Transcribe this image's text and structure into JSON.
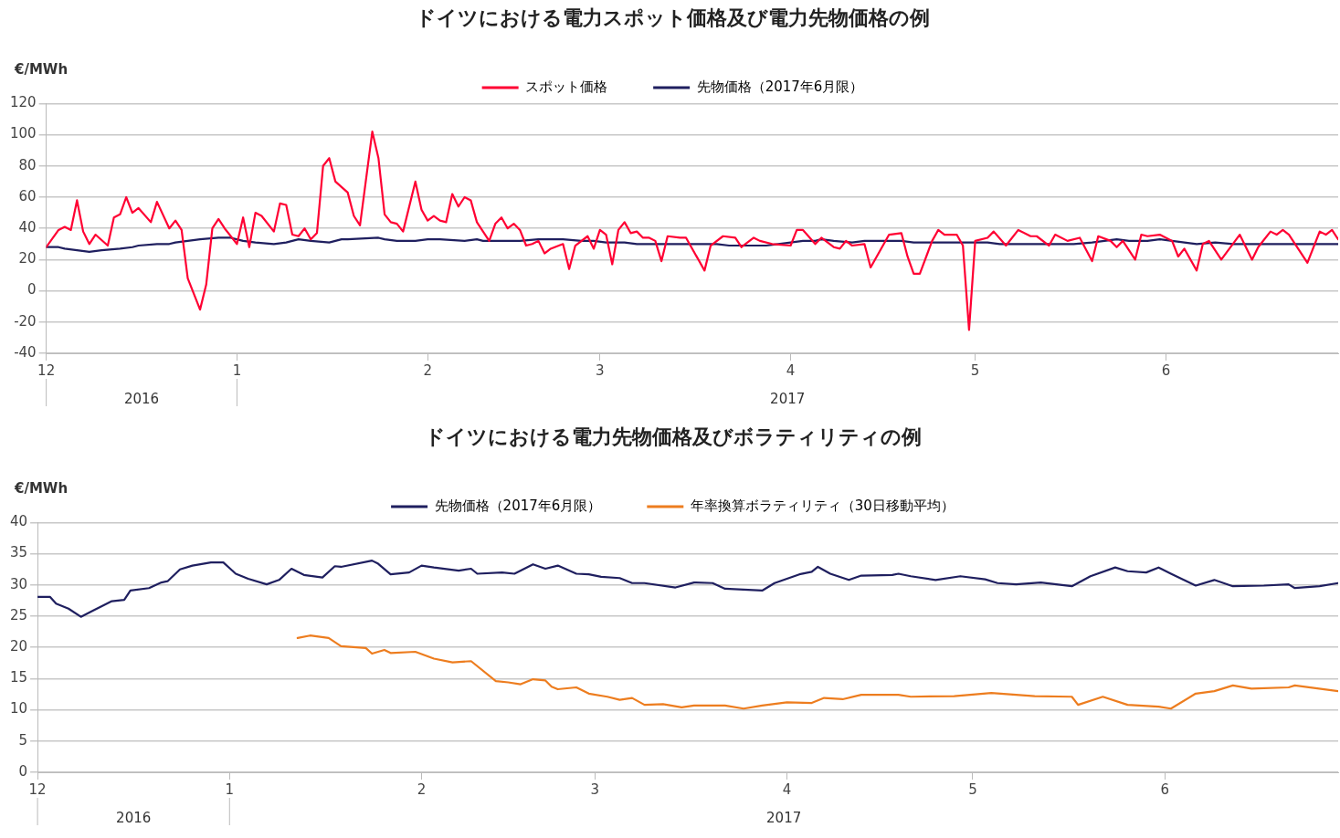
{
  "chart_data": [
    {
      "type": "line",
      "title": "ドイツにおける電力スポット価格及び電力先物価格の例",
      "ylabel": "€/MWh",
      "xlim": [
        "2016-12-01",
        "2017-06-29"
      ],
      "xticks": [
        {
          "value": "2016-12-01",
          "label": "12"
        },
        {
          "value": "2017-01-01",
          "label": "1"
        },
        {
          "value": "2017-02-01",
          "label": "2"
        },
        {
          "value": "2017-03-01",
          "label": "3"
        },
        {
          "value": "2017-04-01",
          "label": "4"
        },
        {
          "value": "2017-05-01",
          "label": "5"
        },
        {
          "value": "2017-06-01",
          "label": "6"
        }
      ],
      "ylim": [
        -40,
        120
      ],
      "yticks": [
        -40,
        -20,
        0,
        20,
        40,
        60,
        80,
        100,
        120
      ],
      "grid": "y",
      "legend": "top",
      "marker": "none",
      "line_style": "solid",
      "annotations": [
        "2016",
        "2017"
      ],
      "series": [
        {
          "name": "スポット価格",
          "color": "#ff0033",
          "x": [
            "2016-12-01",
            "2016-12-03",
            "2016-12-04",
            "2016-12-05",
            "2016-12-06",
            "2016-12-07",
            "2016-12-08",
            "2016-12-09",
            "2016-12-11",
            "2016-12-12",
            "2016-12-13",
            "2016-12-14",
            "2016-12-15",
            "2016-12-16",
            "2016-12-18",
            "2016-12-19",
            "2016-12-21",
            "2016-12-22",
            "2016-12-23",
            "2016-12-24",
            "2016-12-26",
            "2016-12-27",
            "2016-12-28",
            "2016-12-29",
            "2016-12-30",
            "2017-01-01",
            "2017-01-02",
            "2017-01-03",
            "2017-01-04",
            "2017-01-05",
            "2017-01-07",
            "2017-01-08",
            "2017-01-09",
            "2017-01-10",
            "2017-01-11",
            "2017-01-12",
            "2017-01-13",
            "2017-01-14",
            "2017-01-15",
            "2017-01-16",
            "2017-01-17",
            "2017-01-19",
            "2017-01-20",
            "2017-01-21",
            "2017-01-23",
            "2017-01-24",
            "2017-01-25",
            "2017-01-26",
            "2017-01-27",
            "2017-01-28",
            "2017-01-30",
            "2017-01-31",
            "2017-02-01",
            "2017-02-02",
            "2017-02-03",
            "2017-02-04",
            "2017-02-05",
            "2017-02-06",
            "2017-02-07",
            "2017-02-08",
            "2017-02-09",
            "2017-02-11",
            "2017-02-12",
            "2017-02-13",
            "2017-02-14",
            "2017-02-15",
            "2017-02-16",
            "2017-02-17",
            "2017-02-18",
            "2017-02-19",
            "2017-02-20",
            "2017-02-21",
            "2017-02-23",
            "2017-02-24",
            "2017-02-25",
            "2017-02-27",
            "2017-02-28",
            "2017-03-01",
            "2017-03-02",
            "2017-03-03",
            "2017-03-04",
            "2017-03-05",
            "2017-03-06",
            "2017-03-07",
            "2017-03-08",
            "2017-03-09",
            "2017-03-10",
            "2017-03-11",
            "2017-03-12",
            "2017-03-14",
            "2017-03-15",
            "2017-03-18",
            "2017-03-19",
            "2017-03-21",
            "2017-03-23",
            "2017-03-24",
            "2017-03-26",
            "2017-03-27",
            "2017-03-29",
            "2017-04-01",
            "2017-04-02",
            "2017-04-03",
            "2017-04-05",
            "2017-04-06",
            "2017-04-08",
            "2017-04-09",
            "2017-04-10",
            "2017-04-11",
            "2017-04-13",
            "2017-04-14",
            "2017-04-17",
            "2017-04-19",
            "2017-04-20",
            "2017-04-21",
            "2017-04-22",
            "2017-04-24",
            "2017-04-25",
            "2017-04-26",
            "2017-04-28",
            "2017-04-29",
            "2017-04-30",
            "2017-05-01",
            "2017-05-03",
            "2017-05-04",
            "2017-05-06",
            "2017-05-08",
            "2017-05-10",
            "2017-05-11",
            "2017-05-13",
            "2017-05-14",
            "2017-05-16",
            "2017-05-18",
            "2017-05-20",
            "2017-05-21",
            "2017-05-23",
            "2017-05-24",
            "2017-05-25",
            "2017-05-27",
            "2017-05-28",
            "2017-05-29",
            "2017-05-31",
            "2017-06-02",
            "2017-06-03",
            "2017-06-04",
            "2017-06-06",
            "2017-06-07",
            "2017-06-08",
            "2017-06-10",
            "2017-06-13",
            "2017-06-15",
            "2017-06-16",
            "2017-06-18",
            "2017-06-19",
            "2017-06-20",
            "2017-06-21",
            "2017-06-24",
            "2017-06-26",
            "2017-06-27",
            "2017-06-28",
            "2017-06-29"
          ],
          "values": [
            28,
            39,
            41,
            39,
            58,
            38,
            30,
            36,
            29,
            47,
            49,
            60,
            50,
            53,
            44,
            57,
            40,
            45,
            39,
            8,
            -12,
            4,
            40,
            46,
            40,
            30,
            47,
            28,
            50,
            48,
            38,
            56,
            55,
            36,
            35,
            40,
            33,
            37,
            80,
            85,
            70,
            63,
            48,
            42,
            102,
            85,
            49,
            44,
            43,
            38,
            70,
            52,
            45,
            48,
            45,
            44,
            62,
            54,
            60,
            58,
            44,
            32,
            43,
            47,
            40,
            43,
            39,
            29,
            30,
            32,
            24,
            27,
            30,
            14,
            29,
            35,
            27,
            39,
            36,
            17,
            39,
            44,
            37,
            38,
            34,
            34,
            32,
            19,
            35,
            34,
            34,
            13,
            29,
            35,
            34,
            28,
            34,
            32,
            30,
            29,
            39,
            39,
            30,
            34,
            28,
            27,
            32,
            29,
            30,
            15,
            36,
            37,
            22,
            11,
            11,
            32,
            39,
            36,
            36,
            29,
            -25,
            32,
            34,
            38,
            29,
            39,
            35,
            35,
            29,
            36,
            32,
            34,
            19,
            35,
            32,
            28,
            32,
            20,
            36,
            35,
            36,
            32,
            22,
            27,
            13,
            30,
            32,
            20,
            36,
            20,
            28,
            38,
            36,
            39,
            36,
            18,
            38,
            36,
            39,
            33
          ]
        },
        {
          "name": "先物価格（2017年6月限）",
          "color": "#1f1f5f",
          "x": [
            "2016-12-01",
            "2016-12-03",
            "2016-12-04",
            "2016-12-06",
            "2016-12-08",
            "2016-12-10",
            "2016-12-13",
            "2016-12-15",
            "2016-12-16",
            "2016-12-19",
            "2016-12-21",
            "2016-12-22",
            "2016-12-24",
            "2016-12-26",
            "2016-12-29",
            "2016-12-31",
            "2017-01-02",
            "2017-01-04",
            "2017-01-07",
            "2017-01-09",
            "2017-01-11",
            "2017-01-13",
            "2017-01-16",
            "2017-01-18",
            "2017-01-19",
            "2017-01-24",
            "2017-01-25",
            "2017-01-27",
            "2017-01-30",
            "2017-02-01",
            "2017-02-03",
            "2017-02-07",
            "2017-02-09",
            "2017-02-10",
            "2017-02-14",
            "2017-02-16",
            "2017-02-19",
            "2017-02-21",
            "2017-02-23",
            "2017-02-26",
            "2017-02-28",
            "2017-03-02",
            "2017-03-05",
            "2017-03-07",
            "2017-03-09",
            "2017-03-14",
            "2017-03-17",
            "2017-03-20",
            "2017-03-22",
            "2017-03-28",
            "2017-03-30",
            "2017-04-03",
            "2017-04-05",
            "2017-04-06",
            "2017-04-08",
            "2017-04-11",
            "2017-04-13",
            "2017-04-18",
            "2017-04-19",
            "2017-04-21",
            "2017-04-25",
            "2017-04-29",
            "2017-05-03",
            "2017-05-05",
            "2017-05-08",
            "2017-05-12",
            "2017-05-17",
            "2017-05-20",
            "2017-05-24",
            "2017-05-26",
            "2017-05-29",
            "2017-05-31",
            "2017-06-02",
            "2017-06-06",
            "2017-06-09",
            "2017-06-12",
            "2017-06-17",
            "2017-06-21",
            "2017-06-22",
            "2017-06-26",
            "2017-06-29"
          ],
          "values": [
            28,
            28,
            27,
            26,
            25,
            26,
            27,
            28,
            29,
            30,
            30,
            31,
            32,
            33,
            34,
            34,
            32,
            31,
            30,
            31,
            33,
            32,
            31,
            33,
            33,
            34,
            33,
            32,
            32,
            33,
            33,
            32,
            33,
            32,
            32,
            32,
            33,
            33,
            33,
            32,
            32,
            31,
            31,
            30,
            30,
            30,
            30,
            30,
            29,
            29,
            30,
            32,
            32,
            33,
            32,
            31,
            32,
            32,
            32,
            31,
            31,
            31,
            31,
            30,
            30,
            30,
            30,
            31,
            33,
            32,
            32,
            33,
            32,
            30,
            31,
            30,
            30,
            30,
            30,
            30,
            30
          ]
        }
      ]
    },
    {
      "type": "line",
      "title": "ドイツにおける電力先物価格及びボラティリティの例",
      "ylabel": "€/MWh",
      "xlim": [
        "2016-12-01",
        "2017-06-29"
      ],
      "xticks": [
        {
          "value": "2016-12-01",
          "label": "12"
        },
        {
          "value": "2017-01-01",
          "label": "1"
        },
        {
          "value": "2017-02-01",
          "label": "2"
        },
        {
          "value": "2017-03-01",
          "label": "3"
        },
        {
          "value": "2017-04-01",
          "label": "4"
        },
        {
          "value": "2017-05-01",
          "label": "5"
        },
        {
          "value": "2017-06-01",
          "label": "6"
        }
      ],
      "ylim": [
        0,
        40
      ],
      "yticks": [
        0,
        5,
        10,
        15,
        20,
        25,
        30,
        35,
        40
      ],
      "grid": "y",
      "legend": "top",
      "marker": "none",
      "line_style": "solid",
      "annotations": [
        "2016",
        "2017"
      ],
      "series": [
        {
          "name": "先物価格（2017年6月限）",
          "color": "#1f1f5f",
          "x": [
            "2016-12-01",
            "2016-12-03",
            "2016-12-04",
            "2016-12-06",
            "2016-12-08",
            "2016-12-10",
            "2016-12-13",
            "2016-12-15",
            "2016-12-16",
            "2016-12-19",
            "2016-12-21",
            "2016-12-22",
            "2016-12-24",
            "2016-12-26",
            "2016-12-29",
            "2016-12-31",
            "2017-01-02",
            "2017-01-04",
            "2017-01-07",
            "2017-01-09",
            "2017-01-11",
            "2017-01-13",
            "2017-01-16",
            "2017-01-18",
            "2017-01-19",
            "2017-01-24",
            "2017-01-25",
            "2017-01-27",
            "2017-01-30",
            "2017-02-01",
            "2017-02-03",
            "2017-02-07",
            "2017-02-09",
            "2017-02-10",
            "2017-02-14",
            "2017-02-16",
            "2017-02-19",
            "2017-02-21",
            "2017-02-23",
            "2017-02-26",
            "2017-02-28",
            "2017-03-02",
            "2017-03-05",
            "2017-03-07",
            "2017-03-09",
            "2017-03-14",
            "2017-03-17",
            "2017-03-20",
            "2017-03-22",
            "2017-03-28",
            "2017-03-30",
            "2017-04-03",
            "2017-04-05",
            "2017-04-06",
            "2017-04-08",
            "2017-04-11",
            "2017-04-13",
            "2017-04-18",
            "2017-04-19",
            "2017-04-21",
            "2017-04-25",
            "2017-04-29",
            "2017-05-03",
            "2017-05-05",
            "2017-05-08",
            "2017-05-12",
            "2017-05-17",
            "2017-05-20",
            "2017-05-24",
            "2017-05-26",
            "2017-05-29",
            "2017-05-31",
            "2017-06-02",
            "2017-06-06",
            "2017-06-09",
            "2017-06-12",
            "2017-06-17",
            "2017-06-21",
            "2017-06-22",
            "2017-06-26",
            "2017-06-29"
          ],
          "values": [
            28.1,
            28.1,
            27.0,
            26.2,
            24.9,
            25.9,
            27.4,
            27.6,
            29.1,
            29.5,
            30.4,
            30.6,
            32.5,
            33.1,
            33.6,
            33.6,
            31.8,
            31.0,
            30.1,
            30.8,
            32.6,
            31.6,
            31.2,
            33.0,
            32.9,
            33.9,
            33.4,
            31.7,
            32.0,
            33.1,
            32.8,
            32.3,
            32.6,
            31.8,
            32.0,
            31.8,
            33.3,
            32.6,
            33.1,
            31.8,
            31.7,
            31.3,
            31.1,
            30.3,
            30.3,
            29.6,
            30.4,
            30.3,
            29.4,
            29.1,
            30.3,
            31.7,
            32.1,
            32.9,
            31.8,
            30.8,
            31.5,
            31.6,
            31.8,
            31.4,
            30.8,
            31.4,
            30.9,
            30.3,
            30.1,
            30.4,
            29.8,
            31.4,
            32.8,
            32.2,
            32.0,
            32.8,
            31.8,
            29.9,
            30.8,
            29.8,
            29.9,
            30.1,
            29.5,
            29.8,
            30.3
          ]
        },
        {
          "name": "年率換算ボラティリティ（30日移動平均）",
          "color": "#ed7d1f",
          "x": [
            "2017-01-12",
            "2017-01-14",
            "2017-01-17",
            "2017-01-19",
            "2017-01-23",
            "2017-01-24",
            "2017-01-26",
            "2017-01-27",
            "2017-01-31",
            "2017-02-03",
            "2017-02-06",
            "2017-02-09",
            "2017-02-13",
            "2017-02-15",
            "2017-02-17",
            "2017-02-19",
            "2017-02-21",
            "2017-02-22",
            "2017-02-23",
            "2017-02-26",
            "2017-02-28",
            "2017-03-03",
            "2017-03-05",
            "2017-03-07",
            "2017-03-09",
            "2017-03-12",
            "2017-03-15",
            "2017-03-17",
            "2017-03-22",
            "2017-03-25",
            "2017-03-28",
            "2017-04-01",
            "2017-04-05",
            "2017-04-07",
            "2017-04-10",
            "2017-04-13",
            "2017-04-19",
            "2017-04-21",
            "2017-04-28",
            "2017-05-04",
            "2017-05-11",
            "2017-05-17",
            "2017-05-18",
            "2017-05-22",
            "2017-05-26",
            "2017-05-31",
            "2017-06-02",
            "2017-06-06",
            "2017-06-09",
            "2017-06-12",
            "2017-06-15",
            "2017-06-21",
            "2017-06-22",
            "2017-06-29"
          ],
          "values": [
            21.5,
            21.9,
            21.5,
            20.2,
            19.9,
            19.0,
            19.6,
            19.1,
            19.3,
            18.2,
            17.6,
            17.8,
            14.6,
            14.4,
            14.1,
            14.9,
            14.7,
            13.7,
            13.3,
            13.6,
            12.6,
            12.1,
            11.6,
            11.9,
            10.8,
            10.9,
            10.4,
            10.7,
            10.7,
            10.2,
            10.7,
            11.2,
            11.1,
            11.9,
            11.7,
            12.4,
            12.4,
            12.1,
            12.2,
            12.7,
            12.2,
            12.1,
            10.8,
            12.1,
            10.8,
            10.5,
            10.2,
            12.6,
            13.0,
            13.9,
            13.4,
            13.6,
            13.9,
            13.0
          ]
        }
      ]
    }
  ]
}
